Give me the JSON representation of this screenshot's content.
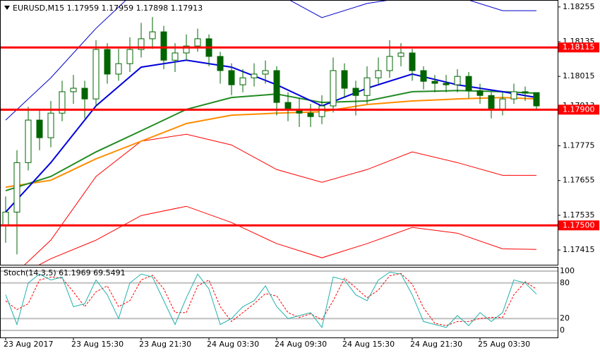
{
  "chart_data": {
    "type": "candlestick",
    "title": "EURUSD,M15  1.17959 1.17959 1.17898 1.17913",
    "up_color": "#ffffff",
    "down_color": "#006400",
    "candle_outline": "#006400",
    "candles": {
      "open": [
        1.175,
        1.17546,
        1.17717,
        1.17864,
        1.17803,
        1.17888,
        1.17962,
        1.17974,
        1.17937,
        1.18108,
        1.18023,
        1.18059,
        1.18108,
        1.18145,
        1.18169,
        1.18071,
        1.18096,
        1.1812,
        1.18145,
        1.18084,
        1.18035,
        1.17986,
        1.1801,
        1.18023,
        1.18035,
        1.17925,
        1.17901,
        1.17888,
        1.17876,
        1.17913,
        1.18035,
        1.17974,
        1.17949,
        1.1801,
        1.18035,
        1.18084,
        1.18096,
        1.18035,
        1.17998,
        1.17991,
        1.17986,
        1.18015,
        1.17966,
        1.17949,
        1.17901,
        1.17937,
        1.17962,
        1.17959
      ],
      "high": [
        1.176,
        1.1776,
        1.1791,
        1.179,
        1.1793,
        1.18,
        1.1802,
        1.18,
        1.1814,
        1.1813,
        1.1811,
        1.1815,
        1.182,
        1.1822,
        1.1819,
        1.1813,
        1.1816,
        1.1818,
        1.1816,
        1.181,
        1.1806,
        1.1804,
        1.1806,
        1.1807,
        1.1805,
        1.1796,
        1.1794,
        1.1792,
        1.1795,
        1.1808,
        1.1806,
        1.18,
        1.1805,
        1.1808,
        1.1814,
        1.1813,
        1.1811,
        1.1805,
        1.1802,
        1.1802,
        1.1804,
        1.1803,
        1.1799,
        1.1796,
        1.1796,
        1.1799,
        1.1798,
        1.17959
      ],
      "low": [
        1.1744,
        1.174,
        1.1769,
        1.1776,
        1.1777,
        1.1786,
        1.1792,
        1.1787,
        1.1791,
        1.1799,
        1.18,
        1.1803,
        1.1808,
        1.1811,
        1.1804,
        1.1803,
        1.1807,
        1.181,
        1.1805,
        1.1799,
        1.1795,
        1.1796,
        1.1798,
        1.1799,
        1.1788,
        1.1786,
        1.1784,
        1.1784,
        1.1785,
        1.1789,
        1.1794,
        1.1788,
        1.1792,
        1.1799,
        1.1801,
        1.1805,
        1.18,
        1.1797,
        1.1796,
        1.1796,
        1.1796,
        1.1794,
        1.1792,
        1.1787,
        1.1788,
        1.1792,
        1.1793,
        1.17898
      ],
      "close": [
        1.17546,
        1.17717,
        1.17864,
        1.17803,
        1.17888,
        1.17962,
        1.17974,
        1.17937,
        1.18108,
        1.18023,
        1.18059,
        1.18108,
        1.18145,
        1.18169,
        1.18071,
        1.18096,
        1.1812,
        1.18145,
        1.18084,
        1.18035,
        1.17986,
        1.1801,
        1.18023,
        1.18035,
        1.17925,
        1.17901,
        1.17888,
        1.17876,
        1.17913,
        1.18035,
        1.17974,
        1.17949,
        1.1801,
        1.18035,
        1.18084,
        1.18096,
        1.18035,
        1.17998,
        1.17991,
        1.17986,
        1.18015,
        1.17966,
        1.17949,
        1.17901,
        1.17937,
        1.17962,
        1.17957,
        1.17913
      ]
    },
    "ylim": [
      1.17364,
      1.18279
    ],
    "yticks": [
      1.18255,
      1.18135,
      1.18015,
      1.17775,
      1.17655,
      1.17535,
      1.17415
    ],
    "current_price": 1.17913,
    "level_color": "#ff0000",
    "levels": [
      {
        "value": 1.18115,
        "label": "1.18115"
      },
      {
        "value": 1.179,
        "label": "1.17900"
      },
      {
        "value": 1.175,
        "label": "1.17500"
      }
    ],
    "indicator_index": [
      0,
      4,
      8,
      12,
      16,
      20,
      24,
      28,
      32,
      36,
      40,
      44,
      47
    ],
    "indicators": [
      {
        "color": "#0000cc",
        "width": 1,
        "values": [
          1.17864,
          1.1801,
          1.18181,
          1.18328,
          1.18316,
          1.18316,
          1.18303,
          1.18218,
          1.18267,
          1.18291,
          1.18291,
          1.18242,
          1.18242
        ]
      },
      {
        "color": "#ff0000",
        "width": 1,
        "values": [
          1.17302,
          1.17449,
          1.17669,
          1.17791,
          1.17815,
          1.17778,
          1.17693,
          1.17649,
          1.17693,
          1.17754,
          1.17717,
          1.17673,
          1.17673
        ]
      },
      {
        "color": "#ff0000",
        "width": 1,
        "values": [
          1.17302,
          1.17385,
          1.17449,
          1.17534,
          1.17566,
          1.1751,
          1.17437,
          1.17388,
          1.17437,
          1.17493,
          1.17473,
          1.17419,
          1.17417
        ]
      },
      {
        "color": "#ff8c00",
        "width": 2,
        "values": [
          1.17632,
          1.17656,
          1.1773,
          1.17791,
          1.17852,
          1.17881,
          1.17888,
          1.17893,
          1.17918,
          1.1793,
          1.17937,
          1.17942,
          1.17937
        ]
      },
      {
        "color": "#228b22",
        "width": 2,
        "values": [
          1.1762,
          1.17669,
          1.17754,
          1.17827,
          1.17901,
          1.17942,
          1.17954,
          1.17925,
          1.1793,
          1.17962,
          1.17966,
          1.17962,
          1.17957
        ]
      },
      {
        "color": "#0000dd",
        "width": 2,
        "values": [
          1.17546,
          1.17717,
          1.17913,
          1.18047,
          1.18071,
          1.18047,
          1.17986,
          1.17913,
          1.17974,
          1.18023,
          1.17986,
          1.17962,
          1.17942
        ]
      }
    ],
    "x_labels": [
      {
        "index": 0,
        "label": "23 Aug 2017"
      },
      {
        "index": 6,
        "label": "23 Aug 15:30"
      },
      {
        "index": 12,
        "label": "23 Aug 21:30"
      },
      {
        "index": 18,
        "label": "24 Aug 03:30"
      },
      {
        "index": 24,
        "label": "24 Aug 09:30"
      },
      {
        "index": 30,
        "label": "24 Aug 15:30"
      },
      {
        "index": 36,
        "label": "24 Aug 21:30"
      },
      {
        "index": 42,
        "label": "25 Aug 03:30"
      }
    ],
    "stochastic": {
      "title": "Stoch(14,3,5) 61.1969 69.5491",
      "ylim": [
        -11.9,
        107.1
      ],
      "yticks": [
        100,
        80,
        20,
        0
      ],
      "main": {
        "color": "#20b2aa",
        "values": [
          60,
          10,
          80,
          95,
          85,
          90,
          40,
          45,
          85,
          60,
          20,
          80,
          95,
          90,
          50,
          10,
          55,
          95,
          70,
          10,
          20,
          40,
          50,
          75,
          40,
          20,
          25,
          30,
          5,
          90,
          85,
          60,
          50,
          85,
          98,
          95,
          60,
          15,
          10,
          5,
          25,
          8,
          30,
          15,
          30,
          85,
          80,
          61.1969
        ]
      },
      "signal": {
        "color": "#ff0000",
        "values": [
          50,
          35,
          45,
          85,
          90,
          88,
          65,
          40,
          65,
          75,
          40,
          50,
          85,
          93,
          70,
          30,
          30,
          75,
          85,
          40,
          15,
          30,
          45,
          62,
          58,
          30,
          22,
          28,
          18,
          50,
          88,
          72,
          55,
          68,
          92,
          96,
          78,
          38,
          12,
          8,
          15,
          15,
          20,
          22,
          22,
          60,
          82,
          69.5491
        ]
      }
    }
  }
}
